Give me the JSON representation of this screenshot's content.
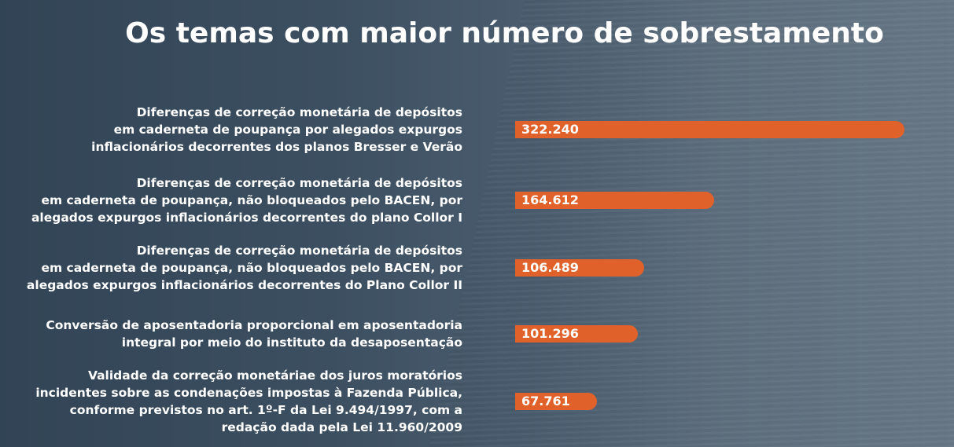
{
  "chart_data": {
    "type": "bar",
    "orientation": "horizontal",
    "title": "Os temas com maior número de sobrestamento",
    "categories": [
      "Diferenças de correção monetária de depósitos\nem caderneta de poupança por alegados expurgos\ninflacionários decorrentes dos planos Bresser e Verão",
      "Diferenças de correção monetária de depósitos\nem caderneta de poupança, não bloqueados pelo BACEN, por\nalegados expurgos inflacionários decorrentes do plano Collor I",
      "Diferenças de correção monetária de depósitos\nem caderneta de poupança, não bloqueados pelo BACEN, por\nalegados expurgos inflacionários decorrentes do Plano Collor II",
      "Conversão de aposentadoria proporcional em aposentadoria\nintegral por meio do instituto da desaposentação",
      "Validade da correção monetáriae dos juros moratórios\nincidentes sobre as condenações impostas à Fazenda Pública,\nconforme previstos no art. 1º-F da Lei 9.494/1997, com a\nredação dada pela Lei 11.960/2009"
    ],
    "values": [
      322240,
      164612,
      106489,
      101296,
      67761
    ],
    "value_labels": [
      "322.240",
      "164.612",
      "106.489",
      "101.296",
      "67.761"
    ],
    "color": "#e0622a"
  }
}
